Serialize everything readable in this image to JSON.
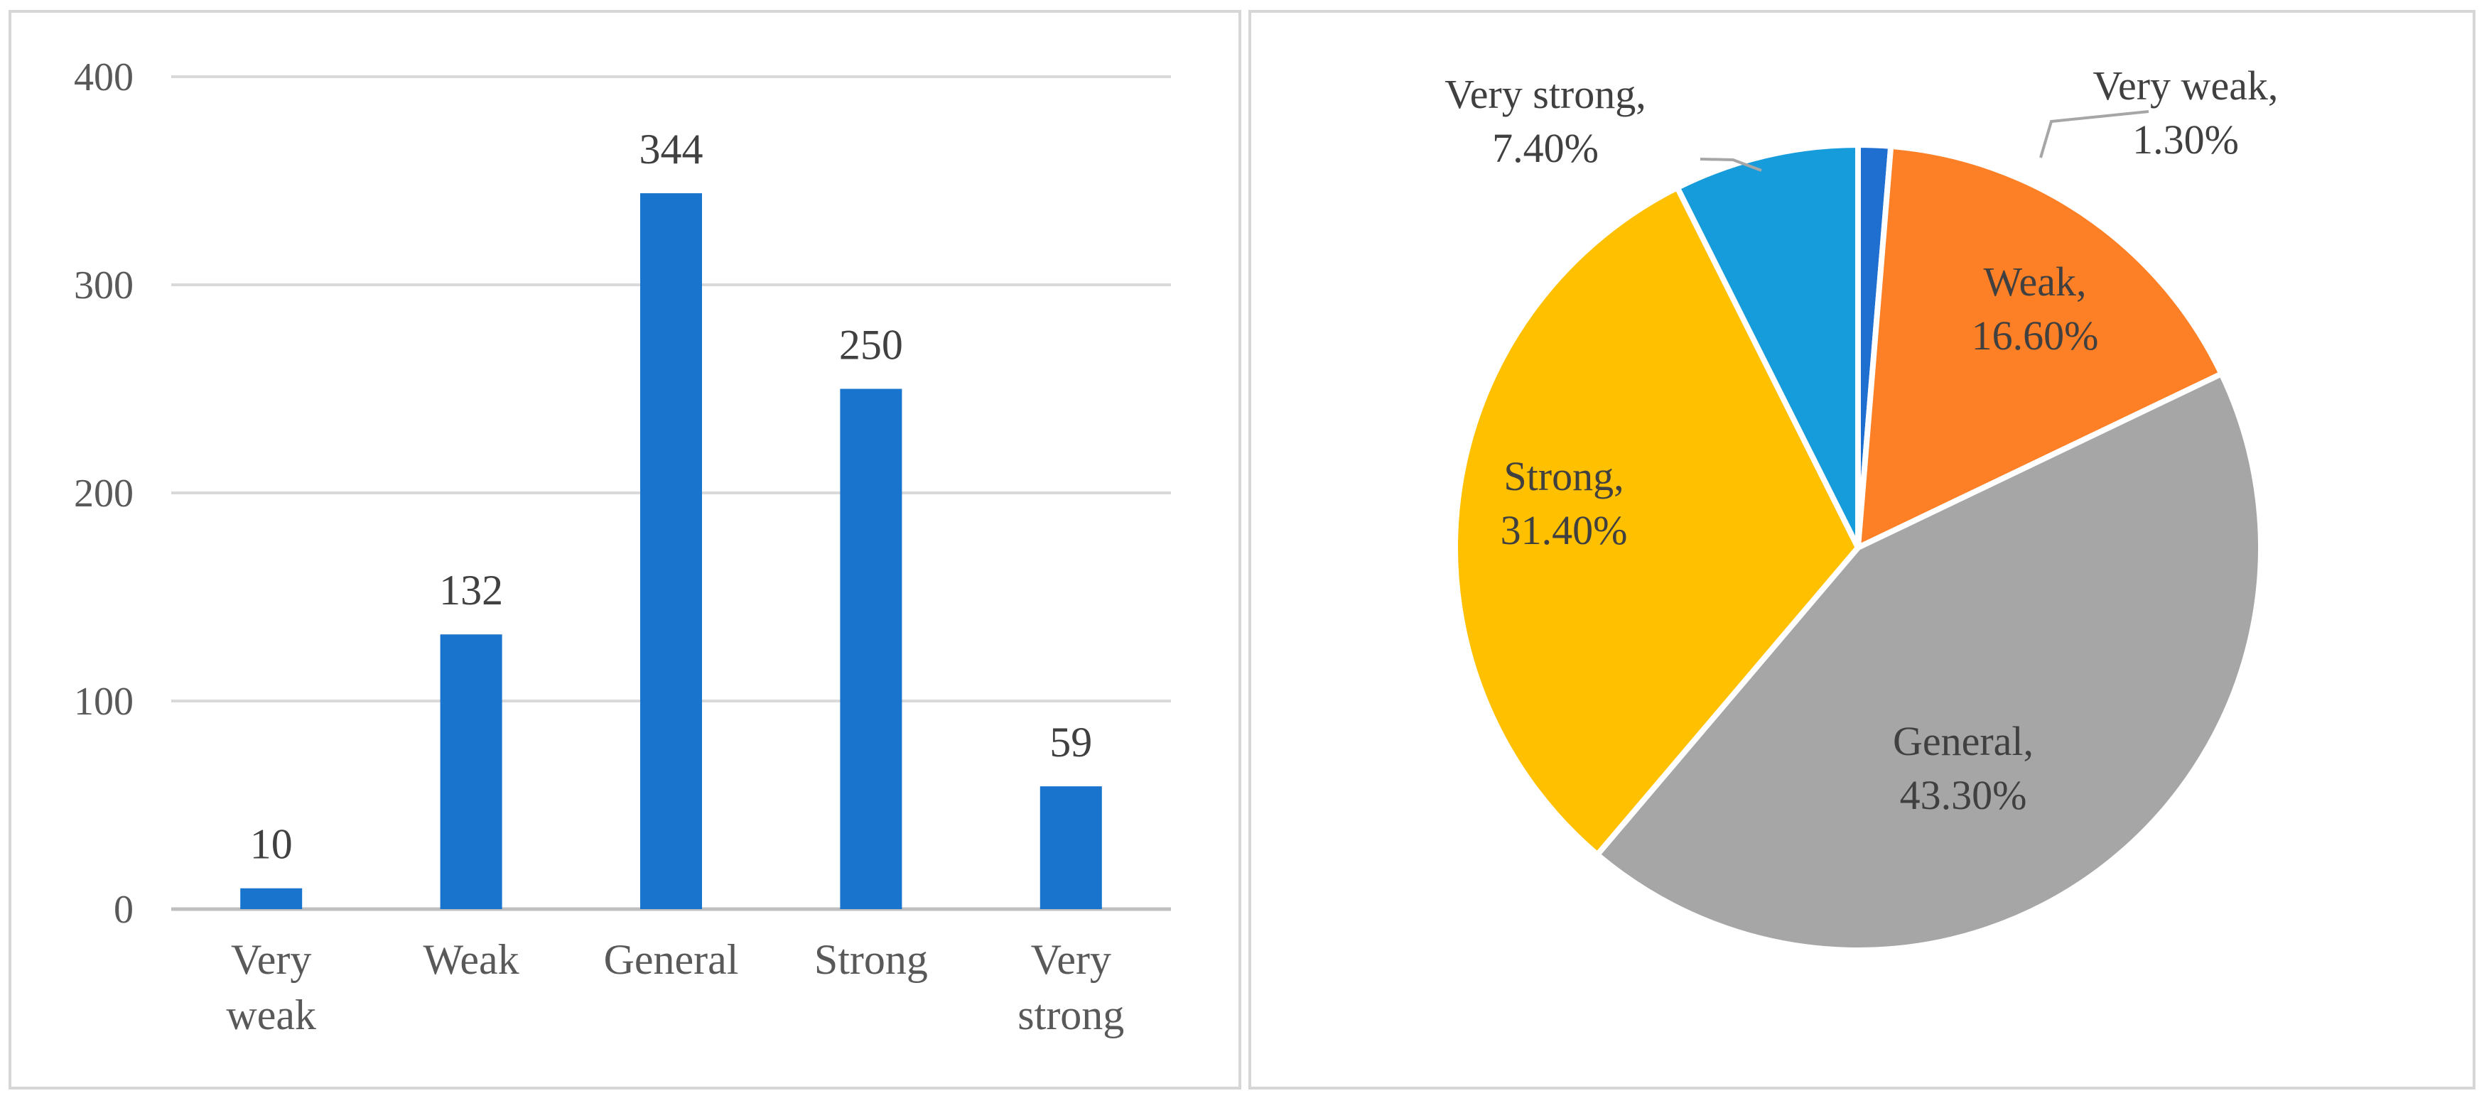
{
  "chart_data": [
    {
      "type": "bar",
      "categories": [
        [
          "Very",
          "weak"
        ],
        [
          "Weak"
        ],
        [
          "General"
        ],
        [
          "Strong"
        ],
        [
          "Very",
          "strong"
        ]
      ],
      "values": [
        10,
        132,
        344,
        250,
        59
      ],
      "data_labels": [
        "10",
        "132",
        "344",
        "250",
        "59"
      ],
      "yticks": [
        "0",
        "100",
        "200",
        "300",
        "400"
      ],
      "ylim": [
        0,
        400
      ],
      "grid": true,
      "colors": {
        "bar": "#1874cd",
        "grid": "#d9d9d9",
        "axis": "#bfbfbf"
      }
    },
    {
      "type": "pie",
      "slices": [
        {
          "label": "Very weak,",
          "pct_label": "1.30%",
          "value": 1.3,
          "color": "#1f6fd1"
        },
        {
          "label": "Weak,",
          "pct_label": "16.60%",
          "value": 16.6,
          "color": "#fd7f26"
        },
        {
          "label": "General,",
          "pct_label": "43.30%",
          "value": 43.3,
          "color": "#a6a6a6"
        },
        {
          "label": "Strong,",
          "pct_label": "31.40%",
          "value": 31.4,
          "color": "#ffc000"
        },
        {
          "label": "Very strong,",
          "pct_label": "7.40%",
          "value": 7.4,
          "color": "#179cdb"
        }
      ]
    }
  ]
}
